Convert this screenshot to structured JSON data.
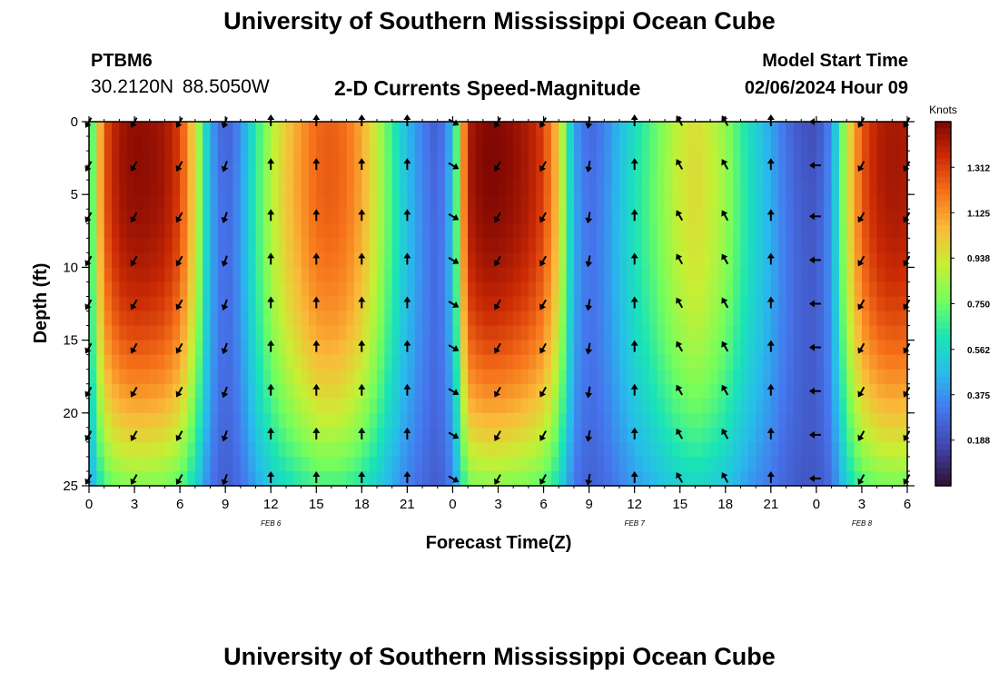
{
  "header": {
    "title": "University of Southern Mississippi Ocean Cube",
    "station": "PTBM6",
    "coords": "30.2120N  88.5050W",
    "subtitle": "2-D Currents Speed-Magnitude",
    "model_start_label": "Model Start Time",
    "model_start_time": "02/06/2024 Hour 09"
  },
  "footer": {
    "title": "University of Southern Mississippi Ocean Cube"
  },
  "chart_data": {
    "type": "heatmap",
    "title": "2-D Currents Speed-Magnitude",
    "xlabel": "Forecast Time(Z)",
    "ylabel": "Depth (ft)",
    "xlim": [
      0,
      54
    ],
    "ylim": [
      0,
      25
    ],
    "x_ticks": [
      {
        "value": 0,
        "label": "0"
      },
      {
        "value": 3,
        "label": "3"
      },
      {
        "value": 6,
        "label": "6"
      },
      {
        "value": 9,
        "label": "9"
      },
      {
        "value": 12,
        "label": "12"
      },
      {
        "value": 15,
        "label": "15"
      },
      {
        "value": 18,
        "label": "18"
      },
      {
        "value": 21,
        "label": "21"
      },
      {
        "value": 24,
        "label": "0"
      },
      {
        "value": 27,
        "label": "3"
      },
      {
        "value": 30,
        "label": "6"
      },
      {
        "value": 33,
        "label": "9"
      },
      {
        "value": 36,
        "label": "12"
      },
      {
        "value": 39,
        "label": "15"
      },
      {
        "value": 42,
        "label": "18"
      },
      {
        "value": 45,
        "label": "21"
      },
      {
        "value": 48,
        "label": "0"
      },
      {
        "value": 51,
        "label": "3"
      },
      {
        "value": 54,
        "label": "6"
      }
    ],
    "y_ticks": [
      {
        "value": 0,
        "label": "0"
      },
      {
        "value": 5,
        "label": "5"
      },
      {
        "value": 10,
        "label": "10"
      },
      {
        "value": 15,
        "label": "15"
      },
      {
        "value": 20,
        "label": "20"
      },
      {
        "value": 25,
        "label": "25"
      }
    ],
    "date_labels": [
      {
        "x": 12,
        "label": "FEB 6"
      },
      {
        "x": 36,
        "label": "FEB 7"
      },
      {
        "x": 51,
        "label": "FEB 8"
      }
    ],
    "colorbar": {
      "label": "Knots",
      "min": 0.0,
      "max": 1.5,
      "ticks": [
        {
          "value": 1.312,
          "label": "1.312"
        },
        {
          "value": 1.125,
          "label": "1.125"
        },
        {
          "value": 0.938,
          "label": "0.938"
        },
        {
          "value": 0.75,
          "label": "0.750"
        },
        {
          "value": 0.562,
          "label": "0.562"
        },
        {
          "value": 0.375,
          "label": "0.375"
        },
        {
          "value": 0.188,
          "label": "0.188"
        }
      ]
    },
    "heatmap": {
      "x_step": 1,
      "depth_step": 1,
      "speed_profile": [
        {
          "x": 0,
          "s": 0.55
        },
        {
          "x": 1,
          "s": 1.25
        },
        {
          "x": 2,
          "s": 1.42
        },
        {
          "x": 3,
          "s": 1.46
        },
        {
          "x": 4,
          "s": 1.45
        },
        {
          "x": 5,
          "s": 1.42
        },
        {
          "x": 6,
          "s": 1.3
        },
        {
          "x": 7,
          "s": 0.95
        },
        {
          "x": 8,
          "s": 0.4
        },
        {
          "x": 9,
          "s": 0.22
        },
        {
          "x": 10,
          "s": 0.35
        },
        {
          "x": 11,
          "s": 0.62
        },
        {
          "x": 12,
          "s": 0.85
        },
        {
          "x": 13,
          "s": 1.0
        },
        {
          "x": 14,
          "s": 1.12
        },
        {
          "x": 15,
          "s": 1.22
        },
        {
          "x": 16,
          "s": 1.24
        },
        {
          "x": 17,
          "s": 1.2
        },
        {
          "x": 18,
          "s": 1.08
        },
        {
          "x": 19,
          "s": 0.88
        },
        {
          "x": 20,
          "s": 0.65
        },
        {
          "x": 21,
          "s": 0.45
        },
        {
          "x": 22,
          "s": 0.32
        },
        {
          "x": 23,
          "s": 0.22
        },
        {
          "x": 24,
          "s": 0.45
        },
        {
          "x": 25,
          "s": 1.4
        },
        {
          "x": 26,
          "s": 1.48
        },
        {
          "x": 27,
          "s": 1.48
        },
        {
          "x": 28,
          "s": 1.45
        },
        {
          "x": 29,
          "s": 1.4
        },
        {
          "x": 30,
          "s": 1.3
        },
        {
          "x": 31,
          "s": 1.0
        },
        {
          "x": 32,
          "s": 0.4
        },
        {
          "x": 33,
          "s": 0.25
        },
        {
          "x": 34,
          "s": 0.32
        },
        {
          "x": 35,
          "s": 0.45
        },
        {
          "x": 36,
          "s": 0.58
        },
        {
          "x": 37,
          "s": 0.68
        },
        {
          "x": 38,
          "s": 0.8
        },
        {
          "x": 39,
          "s": 0.9
        },
        {
          "x": 40,
          "s": 0.95
        },
        {
          "x": 41,
          "s": 0.9
        },
        {
          "x": 42,
          "s": 0.8
        },
        {
          "x": 43,
          "s": 0.65
        },
        {
          "x": 44,
          "s": 0.52
        },
        {
          "x": 45,
          "s": 0.4
        },
        {
          "x": 46,
          "s": 0.28
        },
        {
          "x": 47,
          "s": 0.2
        },
        {
          "x": 48,
          "s": 0.18
        },
        {
          "x": 49,
          "s": 0.35
        },
        {
          "x": 50,
          "s": 0.9
        },
        {
          "x": 51,
          "s": 1.25
        },
        {
          "x": 52,
          "s": 1.38
        },
        {
          "x": 53,
          "s": 1.42
        },
        {
          "x": 54,
          "s": 1.4
        }
      ]
    },
    "vectors": {
      "x_values": [
        0,
        3,
        6,
        9,
        12,
        15,
        18,
        21,
        24,
        27,
        30,
        33,
        36,
        39,
        42,
        45,
        48,
        51,
        54
      ],
      "depth_values": [
        0,
        3,
        6.5,
        9.5,
        12.5,
        15.5,
        18.5,
        21.5,
        24.5
      ],
      "direction_deg_from_north": [
        210,
        210,
        210,
        200,
        0,
        0,
        0,
        0,
        120,
        210,
        210,
        190,
        0,
        330,
        330,
        0,
        270,
        210,
        210
      ]
    }
  }
}
